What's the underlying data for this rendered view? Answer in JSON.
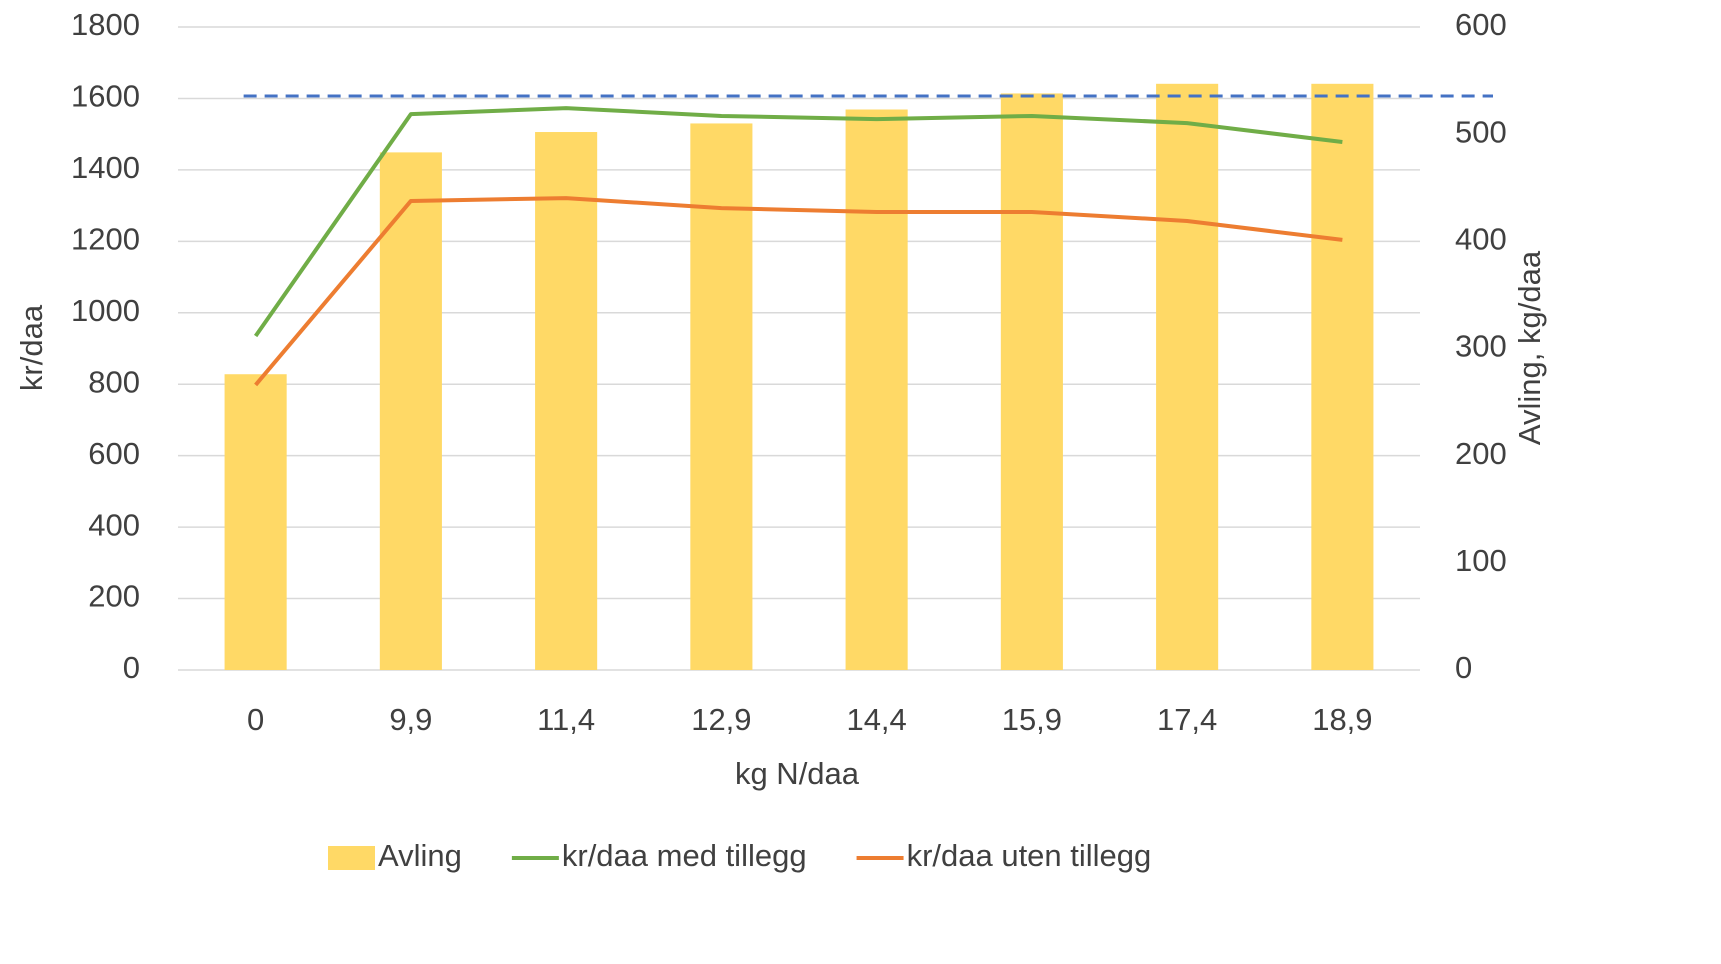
{
  "chart_data": {
    "type": "bar",
    "categories": [
      "0",
      "9,9",
      "11,4",
      "12,9",
      "14,4",
      "15,9",
      "17,4",
      "18,9"
    ],
    "x_label": "kg N/daa",
    "y_label": "kr/daa",
    "y2_label": "Avling, kg/daa",
    "ylim": [
      0,
      1800
    ],
    "yticks": [
      0,
      200,
      400,
      600,
      800,
      1000,
      1200,
      1400,
      1600,
      1800
    ],
    "y2lim": [
      0,
      600
    ],
    "y2ticks": [
      0,
      100,
      200,
      300,
      400,
      500,
      600
    ],
    "grid": true,
    "legend": "bottom",
    "series": [
      {
        "name": "Avling",
        "type": "bar",
        "axis": "y2",
        "color": "#ffd966",
        "values": [
          276,
          483,
          502,
          510,
          523,
          538,
          547,
          547
        ]
      },
      {
        "name": "kr/daa med tillegg",
        "type": "line",
        "color": "#70ad47",
        "values": [
          935,
          1556,
          1573,
          1551,
          1542,
          1551,
          1531,
          1478
        ]
      },
      {
        "name": "kr/daa uten tillegg",
        "type": "line",
        "color": "#ed7d31",
        "values": [
          798,
          1313,
          1321,
          1293,
          1282,
          1282,
          1257,
          1204
        ]
      }
    ],
    "reference_line": {
      "value": 1607,
      "color": "#4472c4"
    }
  }
}
